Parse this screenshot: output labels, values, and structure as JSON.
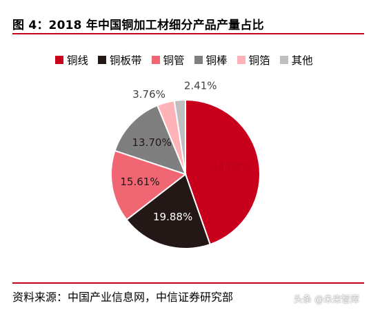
{
  "title": "图 4：2018 年中国铜加工材细分产品产量占比",
  "source": "资料来源：中国产业信息网，中信证券研究部",
  "watermark": "头条 @未来智库",
  "chart_data": {
    "type": "pie",
    "title": "",
    "legend_position": "top",
    "slices": [
      {
        "name": "铜线",
        "value": 44.64,
        "label": "44.64%",
        "color": "#c8001c"
      },
      {
        "name": "铜板带",
        "value": 19.88,
        "label": "19.88%",
        "color": "#231815"
      },
      {
        "name": "铜管",
        "value": 15.61,
        "label": "15.61%",
        "color": "#f06673"
      },
      {
        "name": "铜棒",
        "value": 13.7,
        "label": "13.70%",
        "color": "#7f7f7f"
      },
      {
        "name": "铜箔",
        "value": 3.76,
        "label": "3.76%",
        "color": "#ffb3b8"
      },
      {
        "name": "其他",
        "value": 2.41,
        "label": "2.41%",
        "color": "#bfbfbf"
      }
    ]
  }
}
